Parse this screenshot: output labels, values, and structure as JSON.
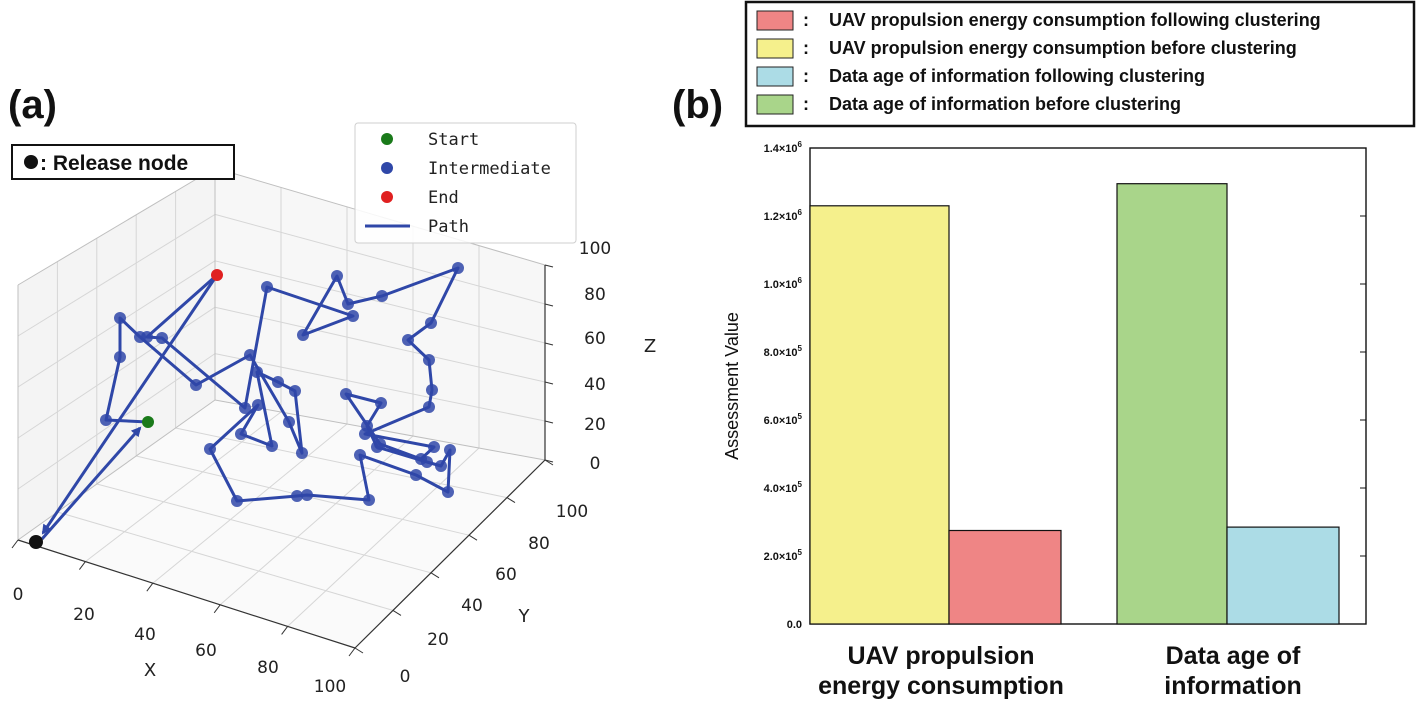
{
  "panel_a_label": "(a)",
  "panel_b_label": "(b)",
  "release_box": {
    "icon": "black-dot-icon",
    "text": ": Release node"
  },
  "chart_data": [
    {
      "type": "scatter",
      "subtype": "3d-path",
      "title": "",
      "xlabel": "X",
      "ylabel": "Y",
      "zlabel": "Z",
      "xlim": [
        0,
        100
      ],
      "ylim": [
        0,
        100
      ],
      "zlim": [
        0,
        100
      ],
      "xticks": [
        "0",
        "20",
        "40",
        "60",
        "80",
        "100"
      ],
      "yticks": [
        "0",
        "20",
        "40",
        "60",
        "80",
        "100"
      ],
      "zticks": [
        "0",
        "20",
        "40",
        "60",
        "80",
        "100"
      ],
      "grid": true,
      "legend": {
        "position": "top-right",
        "entries": [
          {
            "label": "Start",
            "color": "#1a7a1a",
            "kind": "marker"
          },
          {
            "label": "Intermediate",
            "color": "#2f47a8",
            "kind": "marker"
          },
          {
            "label": "End",
            "color": "#e02020",
            "kind": "marker"
          },
          {
            "label": "Path",
            "color": "#2f47a8",
            "kind": "line"
          }
        ]
      },
      "colors": {
        "path": "#2f47a8",
        "start": "#1a7a1a",
        "end": "#e02020",
        "release": "#111111"
      },
      "release_node": {
        "x": 0,
        "y": 0,
        "z": 0
      },
      "projected_path_uv": [
        [
          148,
          422
        ],
        [
          106,
          420
        ],
        [
          120,
          357
        ],
        [
          120,
          318
        ],
        [
          140,
          337
        ],
        [
          196,
          385
        ],
        [
          250,
          355
        ],
        [
          289,
          422
        ],
        [
          302,
          453
        ],
        [
          295,
          391
        ],
        [
          278,
          382
        ],
        [
          257,
          372
        ],
        [
          272,
          446
        ],
        [
          241,
          434
        ],
        [
          258,
          405
        ],
        [
          210,
          449
        ],
        [
          237,
          501
        ],
        [
          297,
          496
        ],
        [
          307,
          495
        ],
        [
          369,
          500
        ],
        [
          360,
          455
        ],
        [
          416,
          475
        ],
        [
          448,
          492
        ],
        [
          450,
          450
        ],
        [
          441,
          466
        ],
        [
          427,
          462
        ],
        [
          377,
          447
        ],
        [
          367,
          426
        ],
        [
          381,
          403
        ],
        [
          346,
          394
        ],
        [
          380,
          444
        ],
        [
          421,
          459
        ],
        [
          434,
          447
        ],
        [
          365,
          434
        ],
        [
          429,
          407
        ],
        [
          432,
          390
        ],
        [
          429,
          360
        ],
        [
          408,
          340
        ],
        [
          431,
          323
        ],
        [
          458,
          268
        ],
        [
          382,
          296
        ],
        [
          348,
          304
        ],
        [
          337,
          276
        ],
        [
          303,
          335
        ],
        [
          353,
          316
        ],
        [
          267,
          287
        ],
        [
          245,
          408
        ],
        [
          162,
          338
        ],
        [
          147,
          337
        ],
        [
          217,
          275
        ]
      ],
      "projected_release_uv": [
        36,
        542
      ]
    },
    {
      "type": "bar",
      "categories": [
        "UAV propulsion energy consumption",
        "Data age of information"
      ],
      "series": [
        {
          "name": "UAV propulsion energy consumption before clustering",
          "color": "#f5f08c",
          "values": [
            1230000,
            null
          ]
        },
        {
          "name": "UAV propulsion energy consumption following clustering",
          "color": "#ef8585",
          "values": [
            275000,
            null
          ]
        },
        {
          "name": "Data age of information before clustering",
          "color": "#a9d58a",
          "values": [
            null,
            1295000
          ]
        },
        {
          "name": "Data age of information following clustering",
          "color": "#acdce6",
          "values": [
            null,
            285000
          ]
        }
      ],
      "ylabel": "Assessment Value",
      "ylim": [
        0,
        1400000
      ],
      "yticks": [
        0,
        200000,
        400000,
        600000,
        800000,
        1000000,
        1200000,
        1400000
      ],
      "ytick_labels": [
        {
          "mant": "0.0",
          "exp": ""
        },
        {
          "mant": "2.0×10",
          "exp": "5"
        },
        {
          "mant": "4.0×10",
          "exp": "5"
        },
        {
          "mant": "6.0×10",
          "exp": "5"
        },
        {
          "mant": "8.0×10",
          "exp": "5"
        },
        {
          "mant": "1.0×10",
          "exp": "6"
        },
        {
          "mant": "1.2×10",
          "exp": "6"
        },
        {
          "mant": "1.4×10",
          "exp": "6"
        }
      ],
      "category_labels": [
        [
          "UAV propulsion",
          "energy consumption"
        ],
        [
          "Data age of",
          "information"
        ]
      ],
      "legend": {
        "position": "top",
        "entries": [
          {
            "label": "UAV propulsion energy consumption following clustering",
            "color": "#ef8585"
          },
          {
            "label": "UAV propulsion energy consumption before clustering",
            "color": "#f5f08c"
          },
          {
            "label": "Data age of  information following clustering",
            "color": "#acdce6"
          },
          {
            "label": "Data age of  information before clustering",
            "color": "#a9d58a"
          }
        ]
      }
    }
  ]
}
